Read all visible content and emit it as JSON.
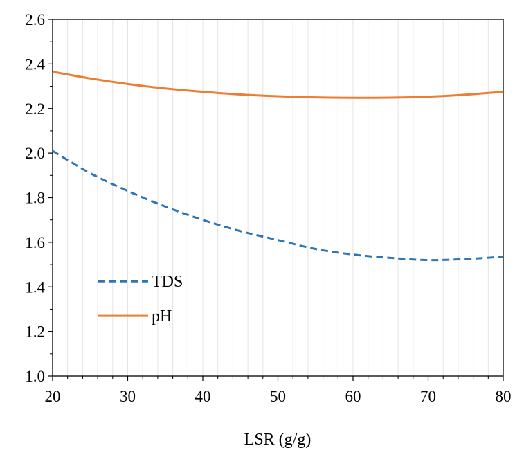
{
  "chart_data": {
    "type": "line",
    "title": "",
    "xlabel": "LSR (g/g)",
    "ylabel": "",
    "xlim": [
      20,
      80
    ],
    "ylim": [
      1.0,
      2.6
    ],
    "x_ticks": [
      "20",
      "30",
      "40",
      "50",
      "60",
      "70",
      "80"
    ],
    "y_ticks": [
      "1.0",
      "1.2",
      "1.4",
      "1.6",
      "1.8",
      "2.0",
      "2.2",
      "2.4",
      "2.6"
    ],
    "grid": "vertical",
    "legend_position": "lower-left",
    "series": [
      {
        "name": "TDS",
        "style": "dashed",
        "color": "#2E75B6",
        "x": [
          20,
          25,
          30,
          35,
          40,
          45,
          50,
          55,
          60,
          65,
          70,
          75,
          80
        ],
        "y": [
          2.01,
          1.91,
          1.83,
          1.76,
          1.7,
          1.65,
          1.61,
          1.57,
          1.545,
          1.53,
          1.52,
          1.525,
          1.535
        ]
      },
      {
        "name": "pH",
        "style": "solid",
        "color": "#ED7D31",
        "x": [
          20,
          25,
          30,
          35,
          40,
          45,
          50,
          55,
          60,
          65,
          70,
          75,
          80
        ],
        "y": [
          2.365,
          2.335,
          2.31,
          2.29,
          2.275,
          2.263,
          2.255,
          2.25,
          2.248,
          2.249,
          2.253,
          2.262,
          2.275
        ]
      }
    ]
  }
}
